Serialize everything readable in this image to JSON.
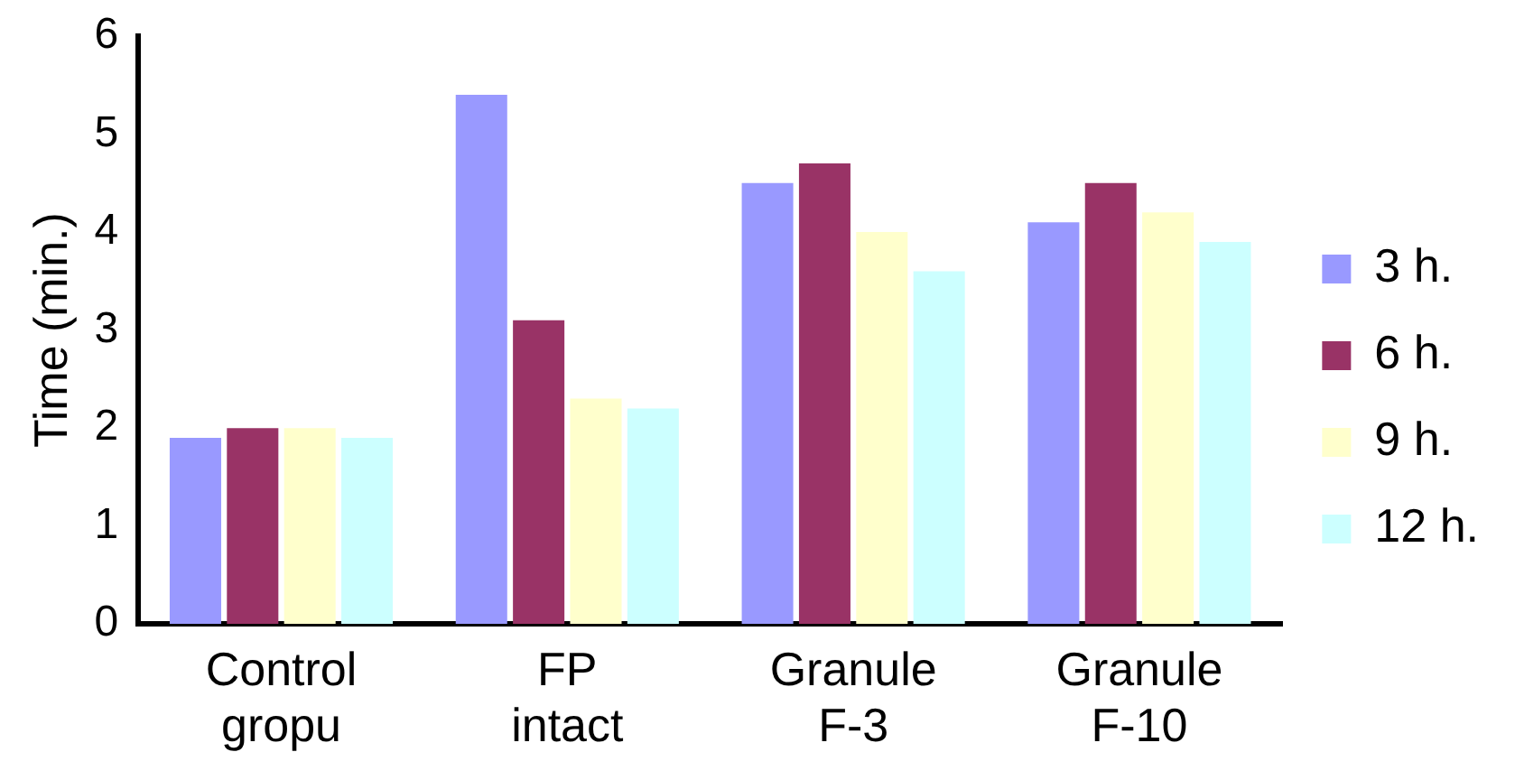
{
  "chart_data": {
    "type": "bar",
    "ylabel": "Time (min.)",
    "categories": [
      "Control gropu",
      "FP intact",
      "Granule F-3",
      "Granule F-10"
    ],
    "series": [
      {
        "name": "3 h.",
        "color": "#9999ff",
        "values": [
          1.9,
          5.4,
          4.5,
          4.1
        ]
      },
      {
        "name": "6 h.",
        "color": "#993366",
        "values": [
          2.0,
          3.1,
          4.7,
          4.5
        ]
      },
      {
        "name": "9 h.",
        "color": "#ffffcc",
        "values": [
          2.0,
          2.3,
          4.0,
          4.2
        ]
      },
      {
        "name": "12 h.",
        "color": "#ccffff",
        "values": [
          1.9,
          2.2,
          3.6,
          3.9
        ]
      }
    ],
    "ylim": [
      0,
      6
    ],
    "yticks": [
      0,
      1,
      2,
      3,
      4,
      5,
      6
    ],
    "grid": false,
    "legend": "right"
  }
}
